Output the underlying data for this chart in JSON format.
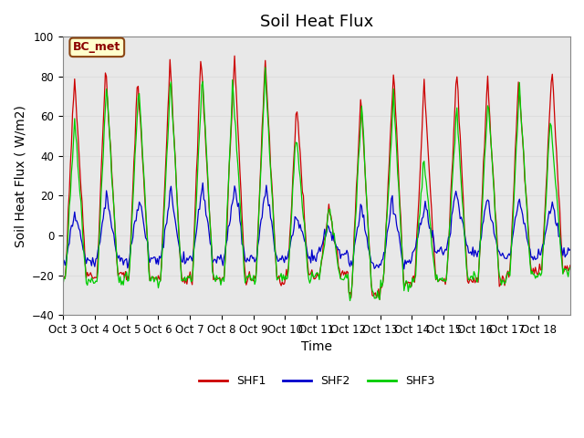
{
  "title": "Soil Heat Flux",
  "xlabel": "Time",
  "ylabel": "Soil Heat Flux ( W/m2)",
  "ylim": [
    -40,
    100
  ],
  "yticks": [
    -40,
    -20,
    0,
    20,
    40,
    60,
    80,
    100
  ],
  "xtick_labels": [
    "Oct 3",
    "Oct 4",
    "Oct 5",
    "Oct 6",
    "Oct 7",
    "Oct 8",
    "Oct 9",
    "Oct 10",
    "Oct 11",
    "Oct 12",
    "Oct 13",
    "Oct 14",
    "Oct 15",
    "Oct 16",
    "Oct 17",
    "Oct 18"
  ],
  "shf1_color": "#cc0000",
  "shf2_color": "#0000cc",
  "shf3_color": "#00cc00",
  "legend_label1": "SHF1",
  "legend_label2": "SHF2",
  "legend_label3": "SHF3",
  "bc_met_label": "BC_met",
  "grid_color": "#dddddd",
  "background_color": "#e8e8e8",
  "title_fontsize": 13,
  "label_fontsize": 10,
  "tick_fontsize": 8.5
}
